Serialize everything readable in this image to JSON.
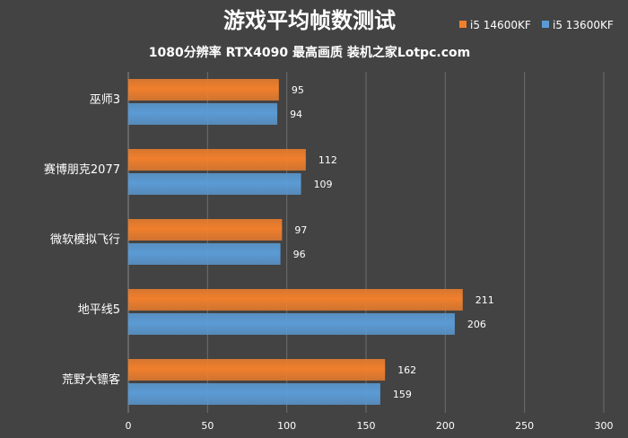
{
  "chart_data": {
    "type": "bar",
    "orientation": "horizontal",
    "title": "游戏平均帧数测试",
    "subtitle": "1080分辨率 RTX4090 最高画质 装机之家Lotpc.com",
    "categories": [
      "巫师3",
      "赛博朋克2077",
      "微软模拟飞行",
      "地平线5",
      "荒野大镖客"
    ],
    "series": [
      {
        "name": "i5 14600KF",
        "color": "#f07f2c",
        "values": [
          95,
          112,
          97,
          211,
          162
        ]
      },
      {
        "name": "i5 13600KF",
        "color": "#5b9bd5",
        "values": [
          94,
          109,
          96,
          206,
          159
        ]
      }
    ],
    "xlim": [
      0,
      300
    ],
    "xticks": [
      "0",
      "50",
      "100",
      "150",
      "200",
      "250",
      "300"
    ],
    "grid": true,
    "legend": "top-right",
    "xlabel": "",
    "ylabel": ""
  }
}
